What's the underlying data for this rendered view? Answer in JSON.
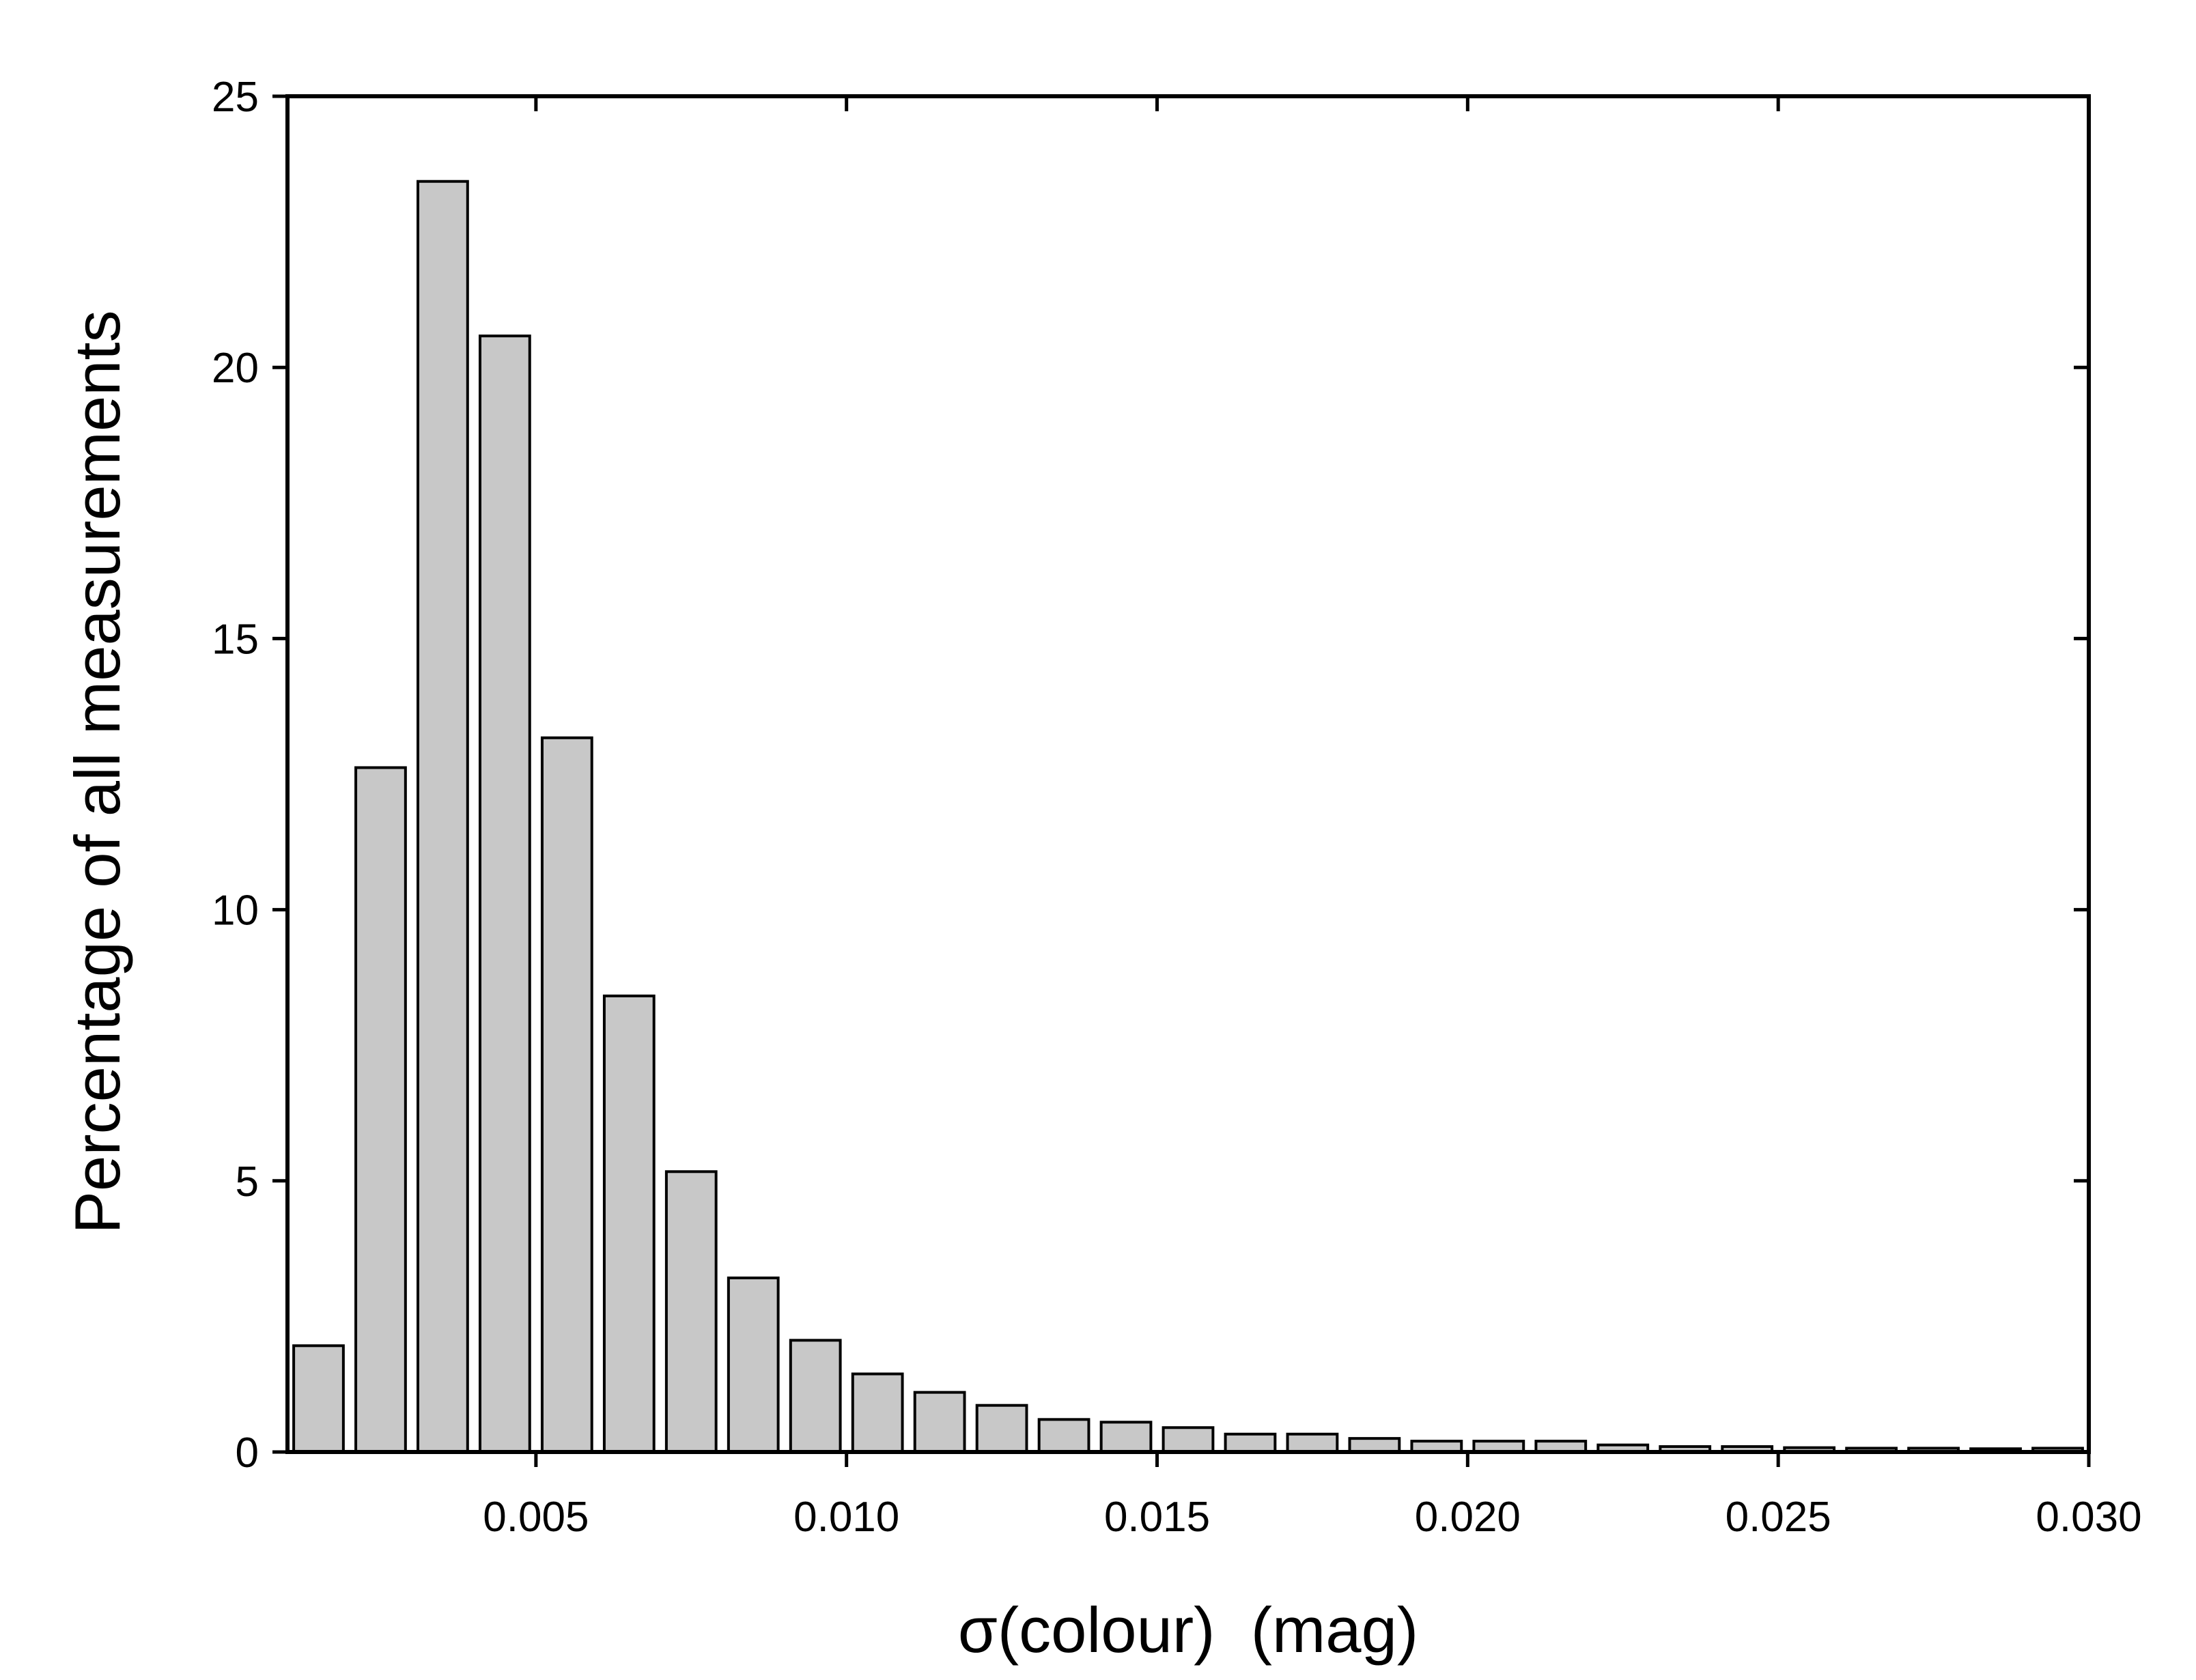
{
  "chart_data": {
    "type": "histogram",
    "xlabel": "σ(colour)  (mag)",
    "ylabel": "Percentage of all measurements",
    "bins": [
      0.001,
      0.002,
      0.003,
      0.004,
      0.005,
      0.006,
      0.007,
      0.008,
      0.009,
      0.01,
      0.011,
      0.012,
      0.013,
      0.014,
      0.015,
      0.016,
      0.017,
      0.018,
      0.019,
      0.02,
      0.021,
      0.022,
      0.023,
      0.024,
      0.025,
      0.026,
      0.027,
      0.028,
      0.029,
      0.03
    ],
    "values": [
      1.96,
      12.62,
      23.43,
      20.58,
      13.17,
      8.41,
      5.17,
      3.21,
      2.06,
      1.44,
      1.1,
      0.86,
      0.6,
      0.55,
      0.45,
      0.33,
      0.33,
      0.25,
      0.2,
      0.2,
      0.2,
      0.13,
      0.1,
      0.1,
      0.08,
      0.07,
      0.07,
      0.06,
      0.07
    ],
    "color": "#c8c8c8",
    "xlim": [
      0.001,
      0.03
    ],
    "xticks": [
      0.005,
      {
        "value": 0.01,
        "label": "0.010"
      },
      0.015,
      {
        "value": 0.02,
        "label": "0.020"
      },
      0.025,
      {
        "value": 0.03,
        "label": "0.030"
      }
    ],
    "ylim": [
      0,
      25
    ],
    "yticks": [
      0,
      5,
      10,
      15,
      20,
      25
    ]
  }
}
